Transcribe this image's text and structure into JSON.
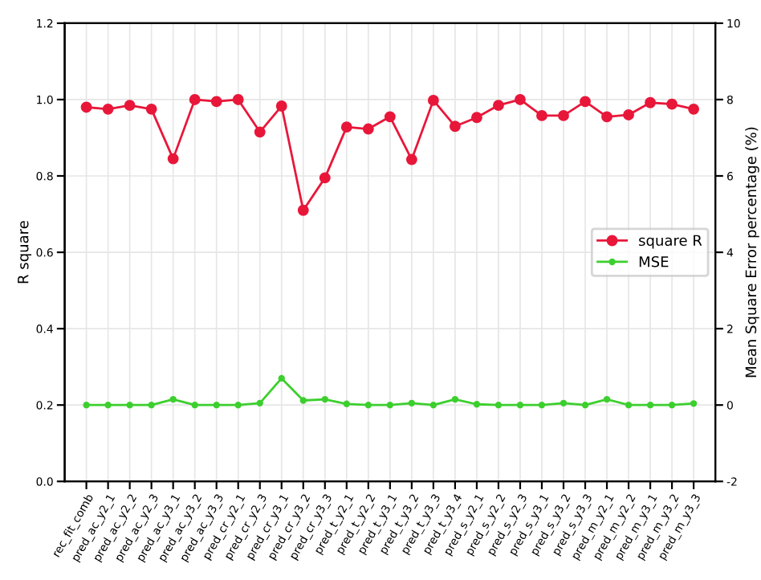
{
  "chart_data": {
    "type": "line",
    "ylabel": "R square",
    "y2label": "Mean Square Error percentage (%)",
    "categories": [
      "rec_fit_comb",
      "pred_ac_y2_1",
      "pred_ac_y2_2",
      "pred_ac_y2_3",
      "pred_ac_y3_1",
      "pred_ac_y3_2",
      "pred_ac_y3_3",
      "pred_cr_y2_1",
      "pred_cr_y2_3",
      "pred_cr_y3_1",
      "pred_cr_y3_2",
      "pred_cr_y3_3",
      "pred_t_y2_1",
      "pred_t_y2_2",
      "pred_t_y3_1",
      "pred_t_y3_2",
      "pred_t_y3_3",
      "pred_t_y3_4",
      "pred_s_y2_1",
      "pred_s_y2_2",
      "pred_s_y2_3",
      "pred_s_y3_1",
      "pred_s_y3_2",
      "pred_s_y3_3",
      "pred_m_y2_1",
      "pred_m_y2_2",
      "pred_m_y3_1",
      "pred_m_y3_2",
      "pred_m_y3_3"
    ],
    "series": [
      {
        "name": "square R",
        "color": "#e8173a",
        "values": [
          0.98,
          0.975,
          0.985,
          0.975,
          0.845,
          1.0,
          0.995,
          1.0,
          0.915,
          0.983,
          0.71,
          0.795,
          0.928,
          0.923,
          0.955,
          0.843,
          0.998,
          0.93,
          0.953,
          0.985,
          1.0,
          0.958,
          0.958,
          0.995,
          0.955,
          0.96,
          0.992,
          0.988,
          0.975
        ]
      },
      {
        "name": "MSE",
        "color": "#3ccf2e",
        "axis": "y2",
        "values": [
          0,
          0,
          0,
          0,
          0.15,
          0,
          0,
          0,
          0.05,
          0.7,
          0.12,
          0.15,
          0.03,
          0,
          0,
          0.05,
          0,
          0.15,
          0.02,
          0,
          0,
          0,
          0.05,
          0,
          0.15,
          0,
          0,
          0,
          0.04
        ]
      }
    ],
    "ylim": [
      0,
      1.2
    ],
    "yticks": [
      {
        "value": 0,
        "label": "0.0"
      },
      0.2,
      0.4,
      0.6,
      0.8,
      {
        "value": 1,
        "label": "1.0"
      },
      1.2
    ],
    "y2lim": [
      -2,
      10
    ],
    "y2ticks": [
      -2,
      0,
      2,
      4,
      6,
      8,
      10
    ],
    "grid": true,
    "legend": "right",
    "marker": "circle",
    "line_style": "solid"
  }
}
